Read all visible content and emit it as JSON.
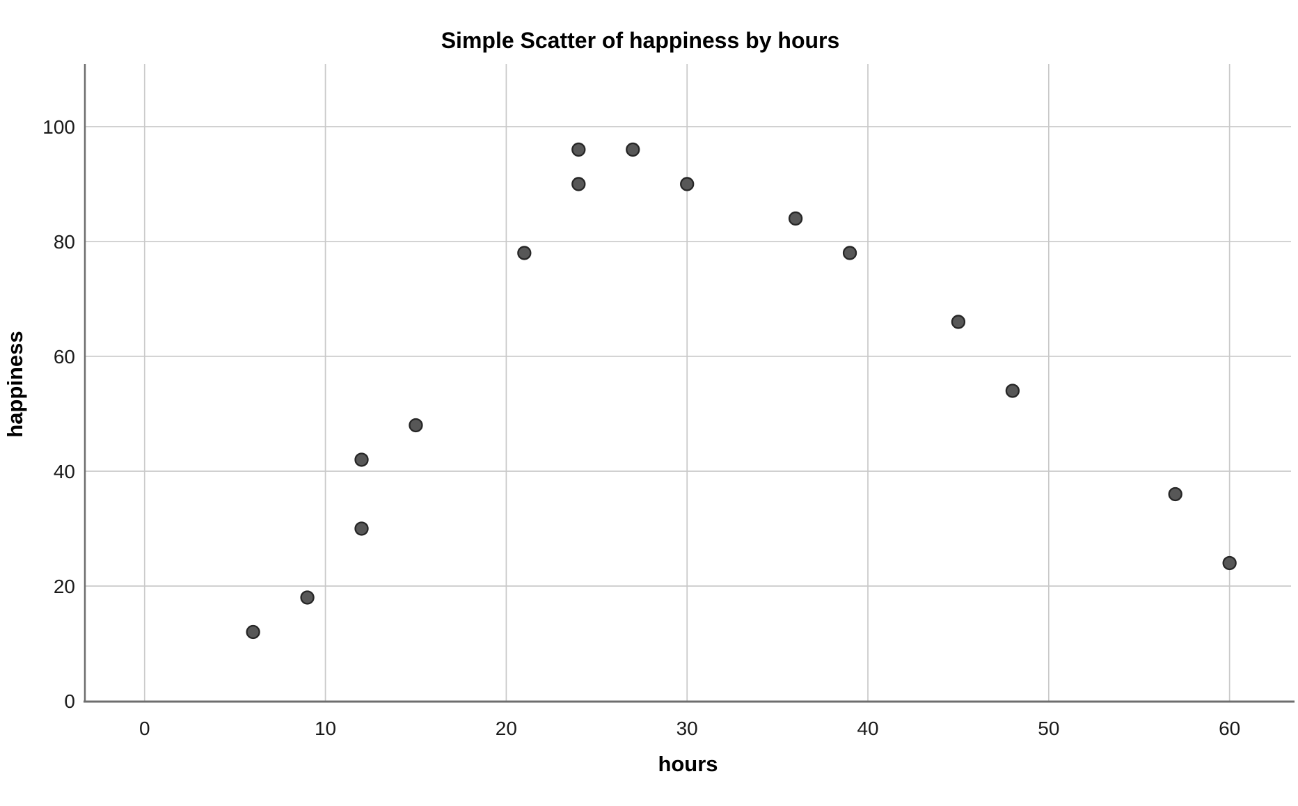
{
  "chart_data": {
    "type": "scatter",
    "title": "Simple Scatter of happiness by hours",
    "xlabel": "hours",
    "ylabel": "happiness",
    "x_ticks": [
      0,
      10,
      20,
      30,
      40,
      50,
      60
    ],
    "y_ticks": [
      0,
      20,
      40,
      60,
      80,
      100
    ],
    "xlim": [
      -3.3,
      63.4
    ],
    "ylim": [
      0,
      110.9
    ],
    "grid": true,
    "legend": "none",
    "points": [
      {
        "hours": 6,
        "happiness": 12
      },
      {
        "hours": 9,
        "happiness": 18
      },
      {
        "hours": 12,
        "happiness": 30
      },
      {
        "hours": 12,
        "happiness": 42
      },
      {
        "hours": 15,
        "happiness": 48
      },
      {
        "hours": 21,
        "happiness": 78
      },
      {
        "hours": 24,
        "happiness": 90
      },
      {
        "hours": 24,
        "happiness": 96
      },
      {
        "hours": 27,
        "happiness": 96
      },
      {
        "hours": 30,
        "happiness": 90
      },
      {
        "hours": 36,
        "happiness": 84
      },
      {
        "hours": 39,
        "happiness": 78
      },
      {
        "hours": 45,
        "happiness": 66
      },
      {
        "hours": 48,
        "happiness": 54
      },
      {
        "hours": 57,
        "happiness": 36
      },
      {
        "hours": 60,
        "happiness": 24
      }
    ],
    "colors": {
      "marker_fill": "#575757",
      "marker_stroke": "#262626",
      "gridline": "#c9c9c9",
      "axis_line": "#6e6e6e",
      "text": "#000000",
      "background": "#ffffff"
    }
  }
}
